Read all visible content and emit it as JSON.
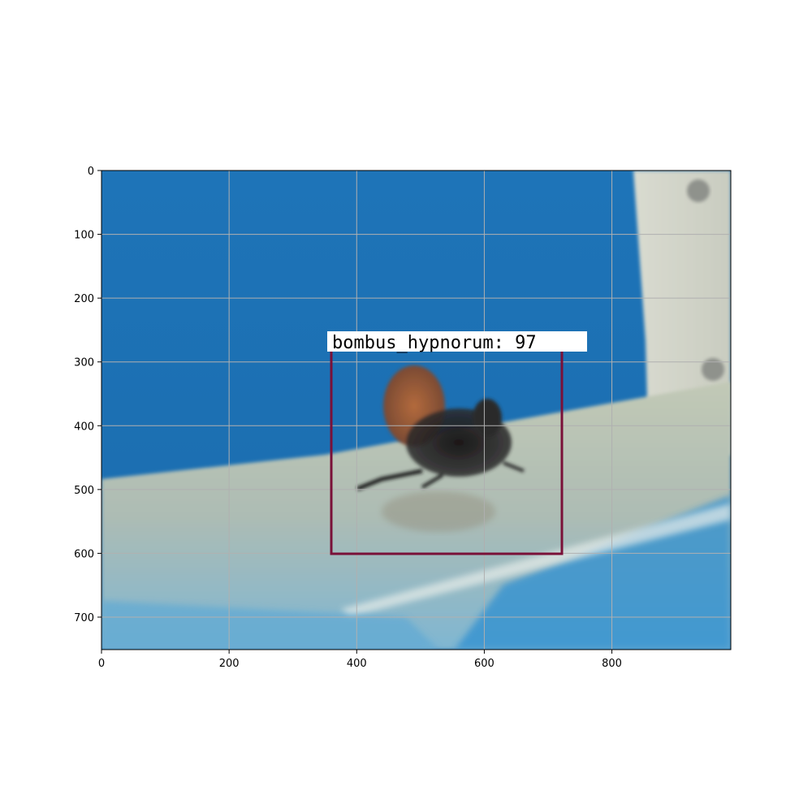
{
  "x_ticks": [
    "0",
    "200",
    "400",
    "600",
    "800"
  ],
  "y_ticks": [
    "0",
    "100",
    "200",
    "300",
    "400",
    "500",
    "600",
    "700"
  ],
  "detection": {
    "label": "bombus_hypnorum: 97",
    "box_color": "#7a1038"
  },
  "image_description_colors": {
    "tank_blue": "#1f78c0",
    "floor_grey": "#b8c2b0",
    "panel_light": "#cfd2c6"
  },
  "show_grid": true
}
